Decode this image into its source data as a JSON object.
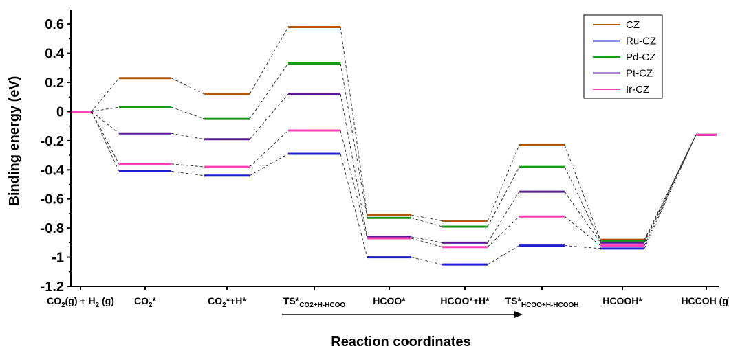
{
  "chart_data": {
    "type": "line",
    "title": "",
    "ylabel": "Binding energy (eV)",
    "xlabel": "Reaction coordinates",
    "ylim": [
      -1.2,
      0.7
    ],
    "yticks": [
      0.6,
      0.4,
      0.2,
      0,
      -0.2,
      -0.4,
      -0.6,
      -0.8,
      -1,
      -1.2
    ],
    "ytick_labels": [
      "0.6",
      "0.4",
      "0.2",
      "0",
      "-0.2",
      "-0.4",
      "-0.6",
      "-0.8",
      "-1",
      "-1.2"
    ],
    "grid": false,
    "legend_position": "top-right",
    "categories": [
      {
        "text": "CO",
        "sub": "2",
        "text2": "(g) + H",
        "sub2": "2",
        "text3": " (g)"
      },
      {
        "text": "CO",
        "sub": "2",
        "text2": "*"
      },
      {
        "text": "CO",
        "sub": "2",
        "text2": "*+H*"
      },
      {
        "text": "TS*",
        "sub": "CO2+H-HCOO"
      },
      {
        "text": "HCOO*"
      },
      {
        "text": "HCOO*+H*"
      },
      {
        "text": "TS*",
        "sub": "HCOO+H-HCOOH"
      },
      {
        "text": "HCOOH*"
      },
      {
        "text": "HCCOH (g)"
      }
    ],
    "series": [
      {
        "name": "CZ",
        "color": "#b35806",
        "values": [
          0,
          0.23,
          0.12,
          0.58,
          -0.71,
          -0.75,
          -0.23,
          -0.88,
          -0.16
        ]
      },
      {
        "name": "Ru-CZ",
        "color": "#1f1fcf",
        "values": [
          0,
          -0.41,
          -0.44,
          -0.29,
          -1.0,
          -1.05,
          -0.92,
          -0.94,
          -0.16
        ]
      },
      {
        "name": "Pd-CZ",
        "color": "#1a9a1a",
        "values": [
          0,
          0.03,
          -0.05,
          0.33,
          -0.73,
          -0.79,
          -0.38,
          -0.89,
          -0.16
        ]
      },
      {
        "name": "Pt-CZ",
        "color": "#5b1a9a",
        "values": [
          0,
          -0.15,
          -0.19,
          0.12,
          -0.86,
          -0.9,
          -0.55,
          -0.9,
          -0.16
        ]
      },
      {
        "name": "Ir-CZ",
        "color": "#ff3fb4",
        "values": [
          0,
          -0.36,
          -0.38,
          -0.13,
          -0.87,
          -0.93,
          -0.72,
          -0.92,
          -0.16
        ]
      }
    ]
  }
}
